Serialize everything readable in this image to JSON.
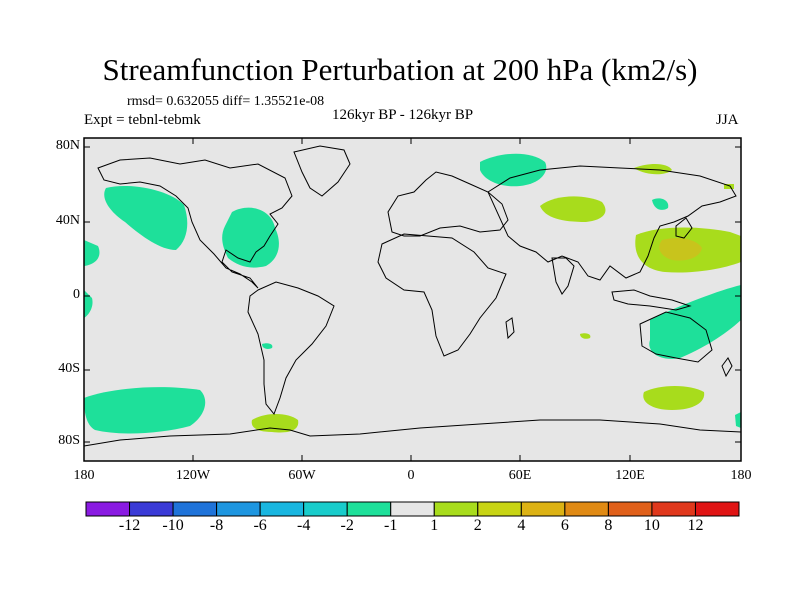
{
  "title": "Streamfunction Perturbation at 200 hPa (km2/s)",
  "stats": "rmsd= 0.632055 diff= 1.35521e-08",
  "experiment": "Expt = tebnl-tebmk",
  "center_label": "126kyr BP - 126kyr BP",
  "season": "JJA",
  "lat_labels": [
    "80N",
    "40N",
    "0",
    "40S",
    "80S"
  ],
  "lon_labels": [
    "180",
    "120W",
    "60W",
    "0",
    "60E",
    "120E",
    "180"
  ],
  "colorbar": {
    "labels": [
      "-12",
      "-10",
      "-8",
      "-6",
      "-4",
      "-2",
      "-1",
      "1",
      "2",
      "4",
      "6",
      "8",
      "10",
      "12"
    ],
    "colors": [
      "#8a1be2",
      "#3a3ad6",
      "#1f73d9",
      "#1e96e0",
      "#19b6e0",
      "#18cccb",
      "#1ee09a",
      "#e6e6e6",
      "#a8dc1c",
      "#c8d414",
      "#dcb214",
      "#e08a14",
      "#e0601a",
      "#e0381c",
      "#e01414"
    ]
  },
  "map_colors": {
    "background": "#e6e6e6",
    "negative": "#1ee09a",
    "positive": "#a8dc1c",
    "positive_strong": "#c8c41c"
  }
}
